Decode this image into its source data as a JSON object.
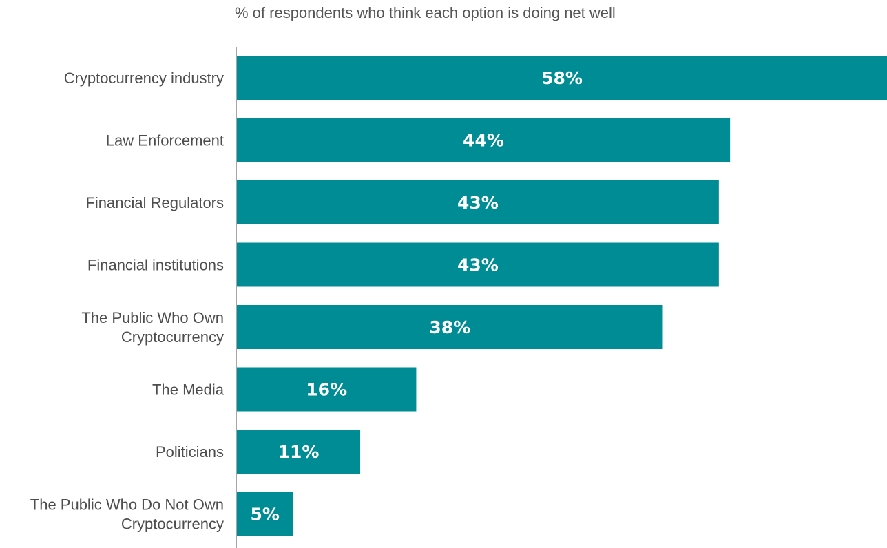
{
  "chart_data": {
    "type": "bar",
    "orientation": "horizontal",
    "subtitle": "% of respondents who think each option is doing net well",
    "categories": [
      [
        "Cryptocurrency industry"
      ],
      [
        "Law Enforcement"
      ],
      [
        "Financial Regulators"
      ],
      [
        "Financial institutions"
      ],
      [
        "The Public Who Own",
        "Cryptocurrency"
      ],
      [
        "The Media"
      ],
      [
        "Politicians"
      ],
      [
        "The Public Who Do Not Own",
        "Cryptocurrency"
      ]
    ],
    "values": [
      58,
      44,
      43,
      43,
      38,
      16,
      11,
      5
    ],
    "data_labels": [
      "58%",
      "44%",
      "43%",
      "43%",
      "38%",
      "16%",
      "11%",
      "5%"
    ],
    "unit": "%",
    "xlim": [
      0,
      58
    ],
    "grid": false,
    "legend": "none",
    "colors": {
      "bar": "#008c95",
      "axis": "#a6a6a6",
      "label_text": "#4d4d4d",
      "value_text": "#ffffff"
    }
  }
}
